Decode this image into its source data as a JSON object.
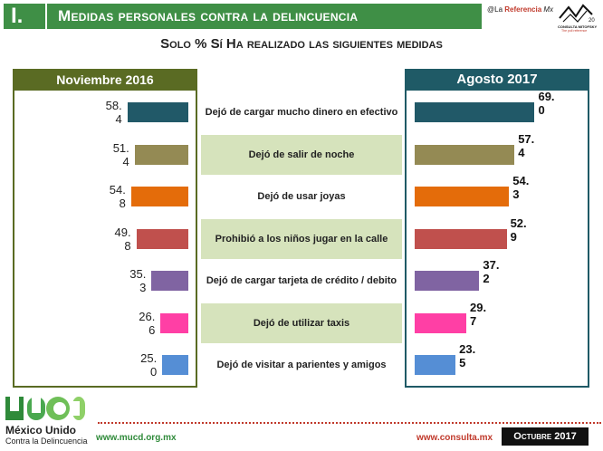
{
  "header": {
    "number": "I.",
    "title": "Medidas personales contra la delincuencia",
    "brand_prefix": "@La",
    "brand_name": "Referencia",
    "brand_suffix": "Mx",
    "logo_text": "CONSULTA MITOFSKY",
    "logo_tagline": "The poll reference",
    "logo_years": "20"
  },
  "subtitle": "Solo % Sí Ha realizado las siguientes medidas",
  "chart_data": {
    "type": "bar",
    "title": "Solo % Sí Ha realizado las siguientes medidas",
    "categories": [
      "Dejó de cargar mucho dinero en efectivo",
      "Dejó de salir de noche",
      "Dejó de usar joyas",
      "Prohibió a los niños jugar en la calle",
      "Dejó de cargar tarjeta de crédito / debito",
      "Dejó de utilizar taxis",
      "Dejó de visitar a parientes y amigos"
    ],
    "series": [
      {
        "name": "Noviembre 2016",
        "values": [
          58.4,
          51.4,
          54.8,
          49.8,
          35.3,
          26.6,
          25.0
        ]
      },
      {
        "name": "Agosto 2017",
        "values": [
          69.0,
          57.4,
          54.3,
          52.9,
          37.2,
          29.7,
          23.5
        ]
      }
    ],
    "left_labels": [
      "58.4",
      "51.4",
      "54.8",
      "49.8",
      "35.3",
      "26.6",
      "25.0"
    ],
    "right_labels": [
      "69.0",
      "57.4",
      "54.3",
      "52.9",
      "37.2",
      "29.7",
      "23.5"
    ],
    "bar_colors": [
      "#215968",
      "#948a54",
      "#e46c0a",
      "#c0504d",
      "#8064a2",
      "#ff3fa5",
      "#558ed5"
    ],
    "shaded_rows": [
      false,
      true,
      false,
      true,
      false,
      true,
      false
    ]
  },
  "footer": {
    "org_line1": "México Unido",
    "org_line2": "Contra la Delincuencia",
    "url_left": "www.mucd.org.mx",
    "url_right": "www.consulta.mx",
    "date": "Octubre 2017"
  },
  "colors": {
    "header_green": "#3f8f46",
    "left_panel": "#5a6b23",
    "right_panel": "#1f5a66"
  }
}
